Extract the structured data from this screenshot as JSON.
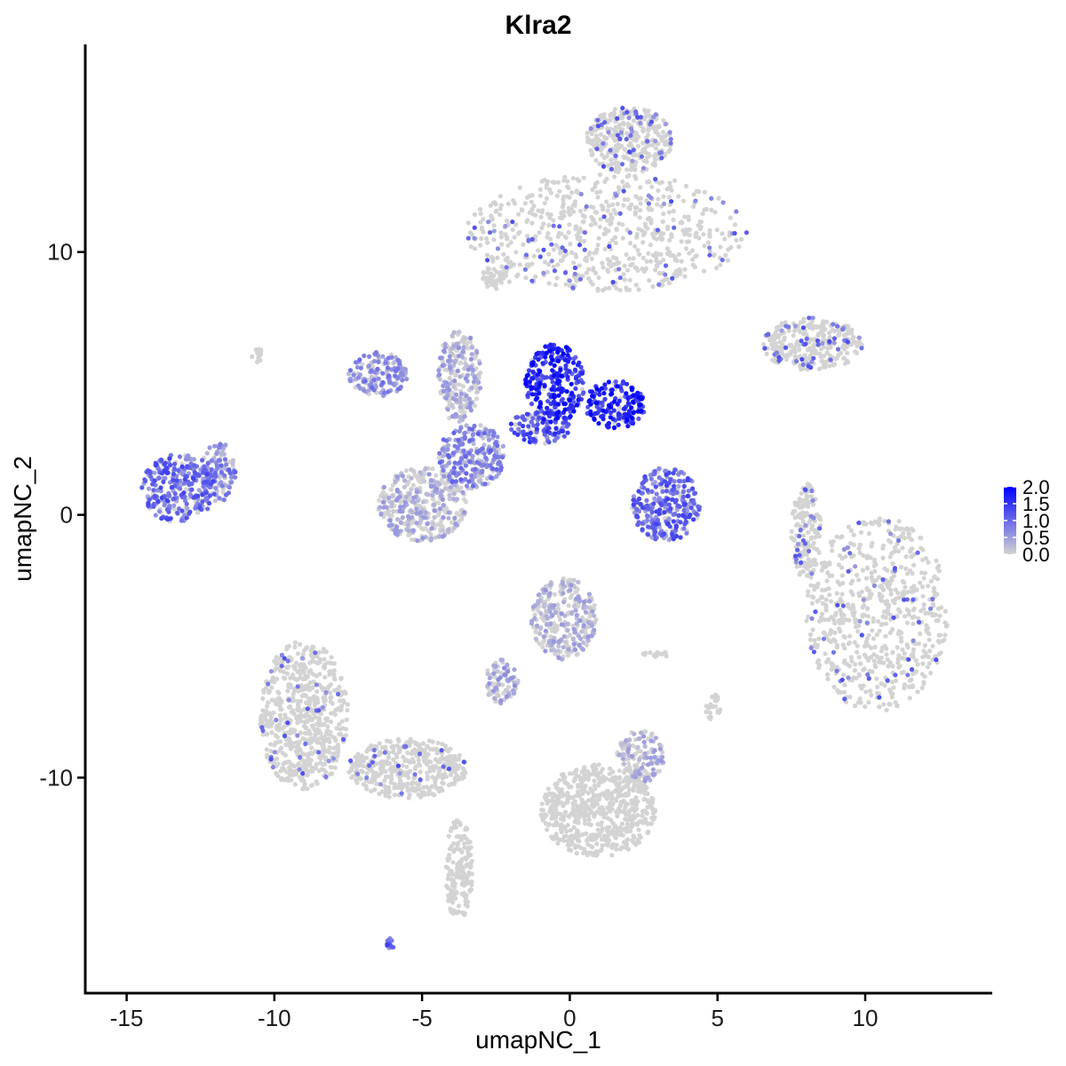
{
  "chart_data": {
    "type": "scatter",
    "title": "Klra2",
    "xlabel": "umapNC_1",
    "ylabel": "umapNC_2",
    "xlim": [
      -16.4,
      14.3
    ],
    "ylim": [
      -18.2,
      17.9
    ],
    "x_ticks": [
      -15,
      -10,
      -5,
      0,
      5,
      10
    ],
    "x_tick_labels": [
      "-15",
      "-10",
      "-5",
      "0",
      "5",
      "10"
    ],
    "y_ticks": [
      -10,
      0,
      10
    ],
    "y_tick_labels": [
      "-10",
      "0",
      "10"
    ],
    "grid": false,
    "legend": {
      "position": "right",
      "type": "colorbar",
      "range": [
        0.0,
        2.0
      ],
      "ticks": [
        0.0,
        0.5,
        1.0,
        1.5,
        2.0
      ],
      "tick_labels": [
        "0.0",
        "0.5",
        "1.0",
        "1.5",
        "2.0"
      ]
    },
    "colors": {
      "low": "#d3d3d3",
      "high": "#0000ff"
    },
    "clusters": [
      {
        "x": [
          -14.5,
          -12.0
        ],
        "y": [
          -0.3,
          2.3
        ],
        "expression": 0.9
      },
      {
        "x": [
          -12.5,
          -11.3
        ],
        "y": [
          0.5,
          2.8
        ],
        "expression": 0.6
      },
      {
        "x": [
          -1.5,
          0.5
        ],
        "y": [
          3.5,
          6.5
        ],
        "expression": 1.5
      },
      {
        "x": [
          0.5,
          2.6
        ],
        "y": [
          3.3,
          5.1
        ],
        "expression": 1.6
      },
      {
        "x": [
          -2.0,
          0.0
        ],
        "y": [
          2.7,
          4.0
        ],
        "expression": 1.1
      },
      {
        "x": [
          -4.5,
          -2.2
        ],
        "y": [
          1.0,
          3.5
        ],
        "expression": 0.6
      },
      {
        "x": [
          -7.5,
          -5.5
        ],
        "y": [
          4.5,
          6.2
        ],
        "expression": 0.5
      },
      {
        "x": [
          -6.5,
          -3.5
        ],
        "y": [
          -1.0,
          1.8
        ],
        "expression": 0.1
      },
      {
        "x": [
          -4.5,
          -3.0
        ],
        "y": [
          3.5,
          7.0
        ],
        "expression": 0.15
      },
      {
        "x": [
          2.1,
          4.4
        ],
        "y": [
          -1.0,
          1.8
        ],
        "expression": 0.9
      },
      {
        "x": [
          0.5,
          3.5
        ],
        "y": [
          13.0,
          15.5
        ],
        "expression": 0.02
      },
      {
        "x": [
          -3.5,
          6.0
        ],
        "y": [
          8.5,
          13.0
        ],
        "expression": 0.02
      },
      {
        "x": [
          -3.0,
          -2.0
        ],
        "y": [
          8.5,
          9.5
        ],
        "expression": 0.0
      },
      {
        "x": [
          6.5,
          9.9
        ],
        "y": [
          5.5,
          7.5
        ],
        "expression": 0.02
      },
      {
        "x": [
          8.0,
          12.8
        ],
        "y": [
          -7.5,
          0.0
        ],
        "expression": 0.01
      },
      {
        "x": [
          7.5,
          8.5
        ],
        "y": [
          -2.5,
          1.2
        ],
        "expression": 0.02
      },
      {
        "x": [
          -10.5,
          -7.5
        ],
        "y": [
          -10.5,
          -4.8
        ],
        "expression": 0.01
      },
      {
        "x": [
          -7.5,
          -3.5
        ],
        "y": [
          -10.8,
          -8.5
        ],
        "expression": 0.01
      },
      {
        "x": [
          -4.2,
          -3.3
        ],
        "y": [
          -15.5,
          -11.5
        ],
        "expression": 0.0
      },
      {
        "x": [
          -1.3,
          0.9
        ],
        "y": [
          -5.5,
          -2.4
        ],
        "expression": 0.08
      },
      {
        "x": [
          -2.9,
          -1.7
        ],
        "y": [
          -7.2,
          -5.5
        ],
        "expression": 0.2
      },
      {
        "x": [
          1.6,
          3.2
        ],
        "y": [
          -10.2,
          -8.2
        ],
        "expression": 0.08
      },
      {
        "x": [
          -1.0,
          2.9
        ],
        "y": [
          -13.0,
          -9.5
        ],
        "expression": 0.0
      },
      {
        "x": [
          -10.8,
          -10.4
        ],
        "y": [
          5.8,
          6.4
        ],
        "expression": 0.0
      },
      {
        "x": [
          4.6,
          5.1
        ],
        "y": [
          -8.0,
          -6.8
        ],
        "expression": 0.0
      },
      {
        "x": [
          2.4,
          3.6
        ],
        "y": [
          -5.4,
          -5.2
        ],
        "expression": 0.0
      },
      {
        "x": [
          -6.2,
          -5.9
        ],
        "y": [
          -16.5,
          -16.1
        ],
        "expression": 1.0
      }
    ]
  }
}
